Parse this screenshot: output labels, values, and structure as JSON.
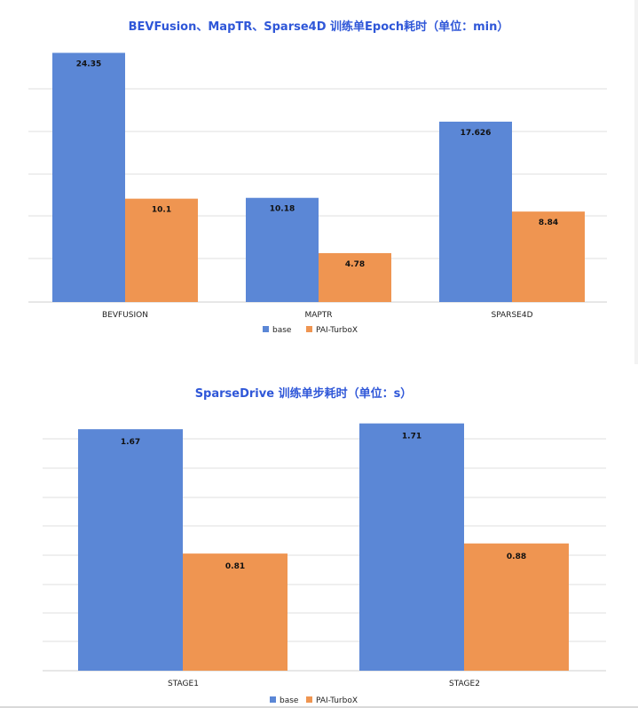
{
  "chart_data": [
    {
      "type": "bar",
      "title": "BEVFusion、MapTR、Sparse4D 训练单Epoch耗时（单位：min）",
      "categories": [
        "BEVFUSION",
        "MAPTR",
        "SPARSE4D"
      ],
      "series": [
        {
          "name": "base",
          "color": "#5b87d6",
          "values": [
            24.35,
            10.18,
            17.626
          ],
          "labels": [
            "24.35",
            "10.18",
            "17.626"
          ]
        },
        {
          "name": "PAI-TurboX",
          "color": "#ef9551",
          "values": [
            10.1,
            4.78,
            8.84
          ],
          "labels": [
            "10.1",
            "4.78",
            "8.84"
          ]
        }
      ],
      "ylim": [
        0,
        25
      ],
      "grid": true,
      "legend_position": "bottom-center"
    },
    {
      "type": "bar",
      "title": "SparseDrive 训练单步耗时（单位：s）",
      "categories": [
        "STAGE1",
        "STAGE2"
      ],
      "series": [
        {
          "name": "base",
          "color": "#5b87d6",
          "values": [
            1.67,
            1.71
          ],
          "labels": [
            "1.67",
            "1.71"
          ]
        },
        {
          "name": "PAI-TurboX",
          "color": "#ef9551",
          "values": [
            0.81,
            0.88
          ],
          "labels": [
            "0.81",
            "0.88"
          ]
        }
      ],
      "ylim": [
        0,
        1.8
      ],
      "grid": true,
      "legend_position": "bottom-center"
    }
  ]
}
